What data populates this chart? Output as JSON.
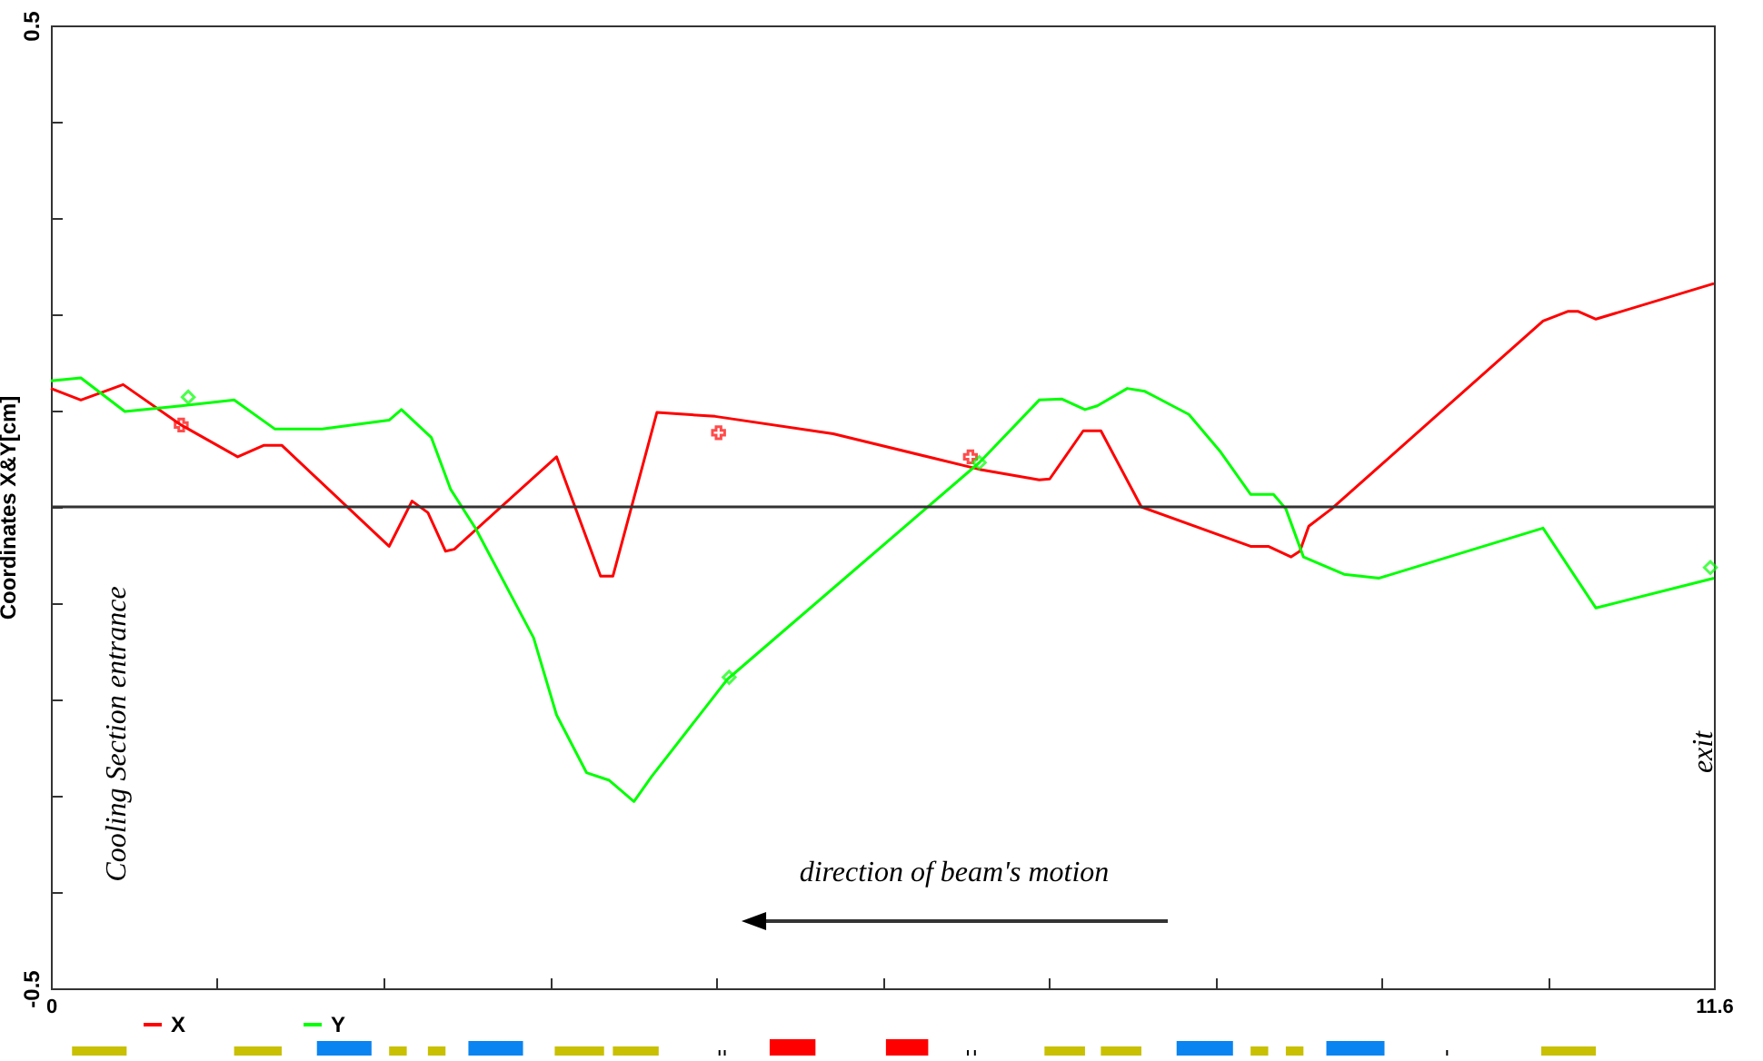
{
  "chart_data": {
    "type": "line",
    "ylabel": "Coordinates X&Y[cm]",
    "xlim": [
      0,
      11.6
    ],
    "ylim": [
      -0.5,
      0.5
    ],
    "xticks": [
      0,
      {
        "value": 1.16,
        "label": null
      },
      {
        "value": 2.32,
        "label": null
      },
      {
        "value": 3.48,
        "label": null
      },
      {
        "value": 4.64,
        "label": null
      },
      {
        "value": 5.8,
        "label": null
      },
      {
        "value": 6.96,
        "label": null
      },
      {
        "value": 8.12,
        "label": null
      },
      {
        "value": 9.28,
        "label": null
      },
      {
        "value": 10.44,
        "label": null
      },
      11.6
    ],
    "yticks": [
      -0.5,
      {
        "value": -0.4,
        "label": null
      },
      {
        "value": -0.3,
        "label": null
      },
      {
        "value": -0.2,
        "label": null
      },
      {
        "value": -0.1,
        "label": null
      },
      {
        "value": 0,
        "label": null
      },
      {
        "value": 0.1,
        "label": null
      },
      {
        "value": 0.2,
        "label": null
      },
      {
        "value": 0.3,
        "label": null
      },
      {
        "value": 0.4,
        "label": null
      },
      0.5
    ],
    "ref_lines": [
      {
        "axis": "y",
        "value": 0,
        "color": "#333333"
      }
    ],
    "annotations": [
      "Cooling Section entrance",
      "exit",
      "direction of beam's motion"
    ],
    "legend": "bottom left",
    "series": [
      {
        "name": "X",
        "color": "#ff0000",
        "x": [
          0,
          0.209,
          0.504,
          0.909,
          1.303,
          1.487,
          1.61,
          2.359,
          2.519,
          2.63,
          2.753,
          2.814,
          3.527,
          3.834,
          3.92,
          4.227,
          4.633,
          5.456,
          6.476,
          6.894,
          6.967,
          7.201,
          7.324,
          7.606,
          8.368,
          8.491,
          8.651,
          8.712,
          8.774,
          8.933,
          10.408,
          10.58,
          10.654,
          10.777,
          11.6
        ],
        "values": [
          0.123,
          0.111,
          0.127,
          0.085,
          0.052,
          0.064,
          0.064,
          -0.041,
          0.006,
          -0.006,
          -0.046,
          -0.044,
          0.052,
          -0.072,
          -0.072,
          0.098,
          0.094,
          0.076,
          0.039,
          0.028,
          0.029,
          0.079,
          0.079,
          0,
          -0.041,
          -0.041,
          -0.052,
          -0.046,
          -0.02,
          -0.002,
          0.193,
          0.203,
          0.203,
          0.195,
          0.232
        ]
      },
      {
        "name": "Y",
        "color": "#00ff00",
        "x": [
          0,
          0.209,
          0.516,
          0.909,
          1.278,
          1.561,
          1.892,
          2.359,
          2.445,
          2.654,
          2.789,
          2.961,
          3.367,
          3.527,
          3.736,
          3.895,
          4.067,
          4.19,
          4.719,
          6.476,
          6.894,
          7.053,
          7.213,
          7.299,
          7.508,
          7.631,
          7.938,
          8.159,
          8.368,
          8.528,
          8.614,
          8.737,
          9.02,
          9.265,
          10.408,
          10.777,
          11.6
        ],
        "values": [
          0.131,
          0.134,
          0.099,
          0.105,
          0.111,
          0.081,
          0.081,
          0.09,
          0.101,
          0.072,
          0.018,
          -0.022,
          -0.136,
          -0.216,
          -0.276,
          -0.284,
          -0.306,
          -0.28,
          -0.179,
          0.046,
          0.111,
          0.112,
          0.101,
          0.105,
          0.123,
          0.12,
          0.096,
          0.057,
          0.013,
          0.013,
          -0.002,
          -0.052,
          -0.07,
          -0.074,
          -0.022,
          -0.105,
          -0.074
        ]
      },
      {
        "type": "scatter",
        "marker": "cross",
        "color": "#ff0000",
        "x": [
          0.909,
          4.657,
          6.414
        ],
        "values": [
          0.085,
          0.077,
          0.052
        ]
      },
      {
        "type": "scatter",
        "marker": "diamond",
        "color": "#00ff00",
        "x": [
          0.958,
          4.731,
          6.476,
          11.575
        ],
        "values": [
          0.114,
          -0.177,
          0.046,
          -0.063
        ]
      }
    ]
  }
}
